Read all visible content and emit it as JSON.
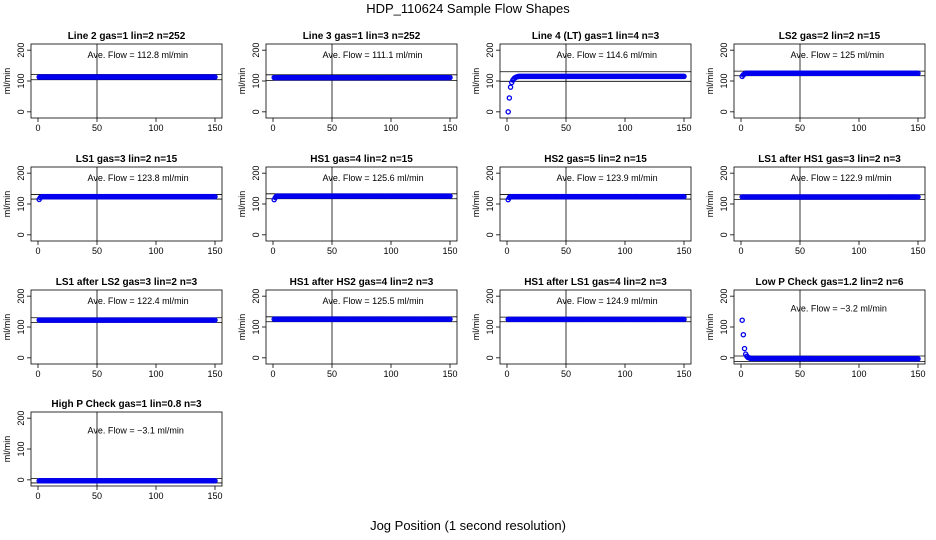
{
  "title": "HDP_110624  Sample Flow Shapes",
  "xlabel": "Jog Position (1 second resolution)",
  "chart_data": [
    {
      "type": "scatter",
      "title": "Line 2 gas=1 lin=2 n=252",
      "ylabel": "ml/min",
      "annotation": "Ave. Flow =  112.8  ml/min",
      "mean": 112.8,
      "xlim": [
        0,
        150
      ],
      "ylim": [
        -20,
        220
      ],
      "xticks": [
        "0",
        "50",
        "100",
        "150"
      ],
      "yticks": [
        "0",
        "100",
        "200"
      ],
      "vline": 50,
      "hlines": [
        104,
        121
      ],
      "x": [
        1,
        150
      ],
      "y": [
        112.8,
        112.8
      ]
    },
    {
      "type": "scatter",
      "title": "Line 3 gas=1 lin=3 n=252",
      "ylabel": "ml/min",
      "annotation": "Ave. Flow =  111.1  ml/min",
      "mean": 111.1,
      "xlim": [
        0,
        150
      ],
      "ylim": [
        -20,
        220
      ],
      "xticks": [
        "0",
        "50",
        "100",
        "150"
      ],
      "yticks": [
        "0",
        "100",
        "200"
      ],
      "vline": 50,
      "hlines": [
        102,
        120
      ],
      "x": [
        1,
        150
      ],
      "y": [
        111.1,
        111.1
      ]
    },
    {
      "type": "scatter",
      "title": "Line 4 (LT) gas=1 lin=4 n=3",
      "ylabel": "ml/min",
      "annotation": "Ave. Flow =  114.6  ml/min",
      "mean": 114.6,
      "xlim": [
        0,
        150
      ],
      "ylim": [
        -20,
        220
      ],
      "xticks": [
        "0",
        "50",
        "100",
        "150"
      ],
      "yticks": [
        "0",
        "100",
        "200"
      ],
      "vline": 50,
      "hlines": [
        99,
        130
      ],
      "x": [
        1,
        2,
        3,
        4,
        5,
        6,
        7,
        8,
        9,
        10,
        150
      ],
      "y": [
        0,
        45,
        80,
        95,
        103,
        108,
        111,
        113,
        114,
        115,
        115
      ]
    },
    {
      "type": "scatter",
      "title": "LS2 gas=2 lin=2 n=15",
      "ylabel": "ml/min",
      "annotation": "Ave. Flow =  125  ml/min",
      "mean": 125,
      "xlim": [
        0,
        150
      ],
      "ylim": [
        -20,
        220
      ],
      "xticks": [
        "0",
        "50",
        "100",
        "150"
      ],
      "yticks": [
        "0",
        "100",
        "200"
      ],
      "vline": 50,
      "hlines": [
        117,
        132
      ],
      "x": [
        1,
        2,
        3,
        4,
        150
      ],
      "y": [
        115,
        120,
        123,
        125,
        125
      ]
    },
    {
      "type": "scatter",
      "title": "LS1 gas=3 lin=2 n=15",
      "ylabel": "ml/min",
      "annotation": "Ave. Flow =  123.8  ml/min",
      "mean": 123.8,
      "xlim": [
        0,
        150
      ],
      "ylim": [
        -20,
        220
      ],
      "xticks": [
        "0",
        "50",
        "100",
        "150"
      ],
      "yticks": [
        "0",
        "100",
        "200"
      ],
      "vline": 50,
      "hlines": [
        116,
        131
      ],
      "x": [
        1,
        2,
        3,
        150
      ],
      "y": [
        115,
        121,
        123.8,
        123.8
      ]
    },
    {
      "type": "scatter",
      "title": "HS1 gas=4 lin=2 n=15",
      "ylabel": "ml/min",
      "annotation": "Ave. Flow =  125.6  ml/min",
      "mean": 125.6,
      "xlim": [
        0,
        150
      ],
      "ylim": [
        -20,
        220
      ],
      "xticks": [
        "0",
        "50",
        "100",
        "150"
      ],
      "yticks": [
        "0",
        "100",
        "200"
      ],
      "vline": 50,
      "hlines": [
        117,
        133
      ],
      "x": [
        1,
        2,
        3,
        150
      ],
      "y": [
        114,
        121,
        125.6,
        125.6
      ]
    },
    {
      "type": "scatter",
      "title": "HS2 gas=5 lin=2 n=15",
      "ylabel": "ml/min",
      "annotation": "Ave. Flow =  123.9  ml/min",
      "mean": 123.9,
      "xlim": [
        0,
        150
      ],
      "ylim": [
        -20,
        220
      ],
      "xticks": [
        "0",
        "50",
        "100",
        "150"
      ],
      "yticks": [
        "0",
        "100",
        "200"
      ],
      "vline": 50,
      "hlines": [
        116,
        131
      ],
      "x": [
        1,
        2,
        3,
        150
      ],
      "y": [
        114,
        121,
        123.9,
        123.9
      ]
    },
    {
      "type": "scatter",
      "title": "LS1 after HS1 gas=3 lin=2 n=3",
      "ylabel": "ml/min",
      "annotation": "Ave. Flow =  122.9  ml/min",
      "mean": 122.9,
      "xlim": [
        0,
        150
      ],
      "ylim": [
        -20,
        220
      ],
      "xticks": [
        "0",
        "50",
        "100",
        "150"
      ],
      "yticks": [
        "0",
        "100",
        "200"
      ],
      "vline": 50,
      "hlines": [
        115,
        130
      ],
      "x": [
        1,
        150
      ],
      "y": [
        122.9,
        122.9
      ]
    },
    {
      "type": "scatter",
      "title": "LS1 after LS2 gas=3 lin=2 n=3",
      "ylabel": "ml/min",
      "annotation": "Ave. Flow =  122.4  ml/min",
      "mean": 122.4,
      "xlim": [
        0,
        150
      ],
      "ylim": [
        -20,
        220
      ],
      "xticks": [
        "0",
        "50",
        "100",
        "150"
      ],
      "yticks": [
        "0",
        "100",
        "200"
      ],
      "vline": 50,
      "hlines": [
        115,
        130
      ],
      "x": [
        1,
        150
      ],
      "y": [
        122.4,
        122.4
      ]
    },
    {
      "type": "scatter",
      "title": "HS1 after HS2 gas=4 lin=2 n=3",
      "ylabel": "ml/min",
      "annotation": "Ave. Flow =  125.5  ml/min",
      "mean": 125.5,
      "xlim": [
        0,
        150
      ],
      "ylim": [
        -20,
        220
      ],
      "xticks": [
        "0",
        "50",
        "100",
        "150"
      ],
      "yticks": [
        "0",
        "100",
        "200"
      ],
      "vline": 50,
      "hlines": [
        117,
        133
      ],
      "x": [
        1,
        150
      ],
      "y": [
        125.5,
        125.5
      ]
    },
    {
      "type": "scatter",
      "title": "HS1 after LS1 gas=4 lin=2 n=3",
      "ylabel": "ml/min",
      "annotation": "Ave. Flow =  124.9  ml/min",
      "mean": 124.9,
      "xlim": [
        0,
        150
      ],
      "ylim": [
        -20,
        220
      ],
      "xticks": [
        "0",
        "50",
        "100",
        "150"
      ],
      "yticks": [
        "0",
        "100",
        "200"
      ],
      "vline": 50,
      "hlines": [
        117,
        132
      ],
      "x": [
        1,
        150
      ],
      "y": [
        124.9,
        124.9
      ]
    },
    {
      "type": "scatter",
      "title": "Low P Check gas=1.2 lin=2 n=6",
      "ylabel": "ml/min",
      "annotation": "Ave. Flow =  −3.2  ml/min",
      "mean": -3.2,
      "xlim": [
        0,
        150
      ],
      "ylim": [
        -20,
        220
      ],
      "xticks": [
        "0",
        "50",
        "100",
        "150"
      ],
      "yticks": [
        "0",
        "100",
        "200"
      ],
      "vline": 50,
      "hlines": [
        -12,
        6
      ],
      "x": [
        1,
        2,
        3,
        4,
        5,
        6,
        7,
        8,
        150
      ],
      "y": [
        122,
        75,
        30,
        12,
        5,
        1,
        0,
        -2,
        -3
      ]
    },
    {
      "type": "scatter",
      "title": "High P Check gas=1 lin=0.8 n=3",
      "ylabel": "ml/min",
      "annotation": "Ave. Flow =  −3.1  ml/min",
      "mean": -3.1,
      "xlim": [
        0,
        150
      ],
      "ylim": [
        -20,
        220
      ],
      "xticks": [
        "0",
        "50",
        "100",
        "150"
      ],
      "yticks": [
        "0",
        "100",
        "200"
      ],
      "vline": 50,
      "hlines": [
        -10,
        4
      ],
      "x": [
        1,
        150
      ],
      "y": [
        -3.1,
        -3.1
      ]
    }
  ],
  "colors": {
    "points": "#0000ee",
    "axes": "#000000"
  }
}
